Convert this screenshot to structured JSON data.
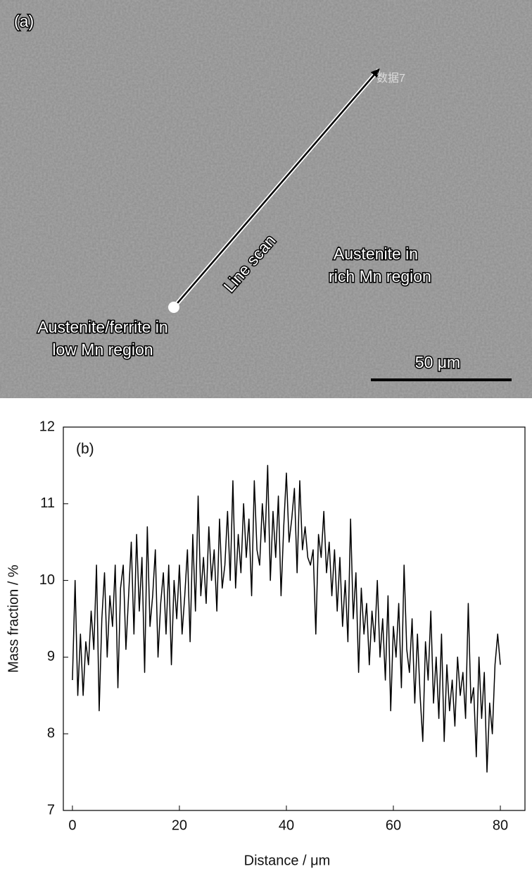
{
  "figure_a": {
    "panel_label": "(a)",
    "marker_label": "数据7",
    "scan_label": "Line scan",
    "rich_label": [
      "Austenite in",
      "rich Mn region"
    ],
    "low_label": [
      "Austenite/ferrite in",
      "low Mn region"
    ],
    "scale_bar": "50 μm"
  },
  "chart_data": {
    "type": "line",
    "annotation": "(b)",
    "xlabel": "Distance / μm",
    "ylabel": "Mass fraction / %",
    "color": "#000000",
    "xlim": [
      -1.7,
      84.6
    ],
    "ylim": [
      7,
      12
    ],
    "xticks": [
      0,
      20,
      40,
      60,
      80
    ],
    "yticks": [
      7,
      8,
      9,
      10,
      11,
      12
    ],
    "x": [
      0,
      0.5,
      1,
      1.5,
      2,
      2.5,
      3,
      3.5,
      4,
      4.5,
      5,
      5.5,
      6,
      6.5,
      7,
      7.5,
      8,
      8.5,
      9,
      9.5,
      10,
      10.5,
      11,
      11.5,
      12,
      12.5,
      13,
      13.5,
      14,
      14.5,
      15,
      15.5,
      16,
      16.5,
      17,
      17.5,
      18,
      18.5,
      19,
      19.5,
      20,
      20.5,
      21,
      21.5,
      22,
      22.5,
      23,
      23.5,
      24,
      24.5,
      25,
      25.5,
      26,
      26.5,
      27,
      27.5,
      28,
      28.5,
      29,
      29.5,
      30,
      30.5,
      31,
      31.5,
      32,
      32.5,
      33,
      33.5,
      34,
      34.5,
      35,
      35.5,
      36,
      36.5,
      37,
      37.5,
      38,
      38.5,
      39,
      39.5,
      40,
      40.5,
      41,
      41.5,
      42,
      42.5,
      43,
      43.5,
      44,
      44.5,
      45,
      45.5,
      46,
      46.5,
      47,
      47.5,
      48,
      48.5,
      49,
      49.5,
      50,
      50.5,
      51,
      51.5,
      52,
      52.5,
      53,
      53.5,
      54,
      54.5,
      55,
      55.5,
      56,
      56.5,
      57,
      57.5,
      58,
      58.5,
      59,
      59.5,
      60,
      60.5,
      61,
      61.5,
      62,
      62.5,
      63,
      63.5,
      64,
      64.5,
      65,
      65.5,
      66,
      66.5,
      67,
      67.5,
      68,
      68.5,
      69,
      69.5,
      70,
      70.5,
      71,
      71.5,
      72,
      72.5,
      73,
      73.5,
      74,
      74.5,
      75,
      75.5,
      76,
      76.5,
      77,
      77.5,
      78,
      78.5,
      79,
      79.5,
      80
    ],
    "values": [
      8.7,
      10.0,
      8.5,
      9.3,
      8.5,
      9.2,
      8.9,
      9.6,
      9.1,
      10.2,
      8.3,
      9.5,
      10.1,
      9.0,
      9.8,
      9.4,
      10.2,
      8.6,
      9.9,
      10.2,
      9.1,
      9.8,
      10.5,
      9.3,
      10.6,
      9.6,
      10.3,
      8.8,
      10.7,
      9.4,
      9.8,
      10.4,
      9.0,
      9.7,
      10.1,
      9.3,
      10.2,
      8.9,
      10.0,
      9.5,
      10.2,
      9.3,
      9.8,
      10.4,
      9.2,
      10.6,
      9.6,
      11.1,
      9.8,
      10.3,
      9.7,
      10.7,
      10.0,
      10.4,
      9.6,
      10.8,
      9.9,
      10.2,
      10.9,
      10.0,
      11.3,
      9.9,
      10.6,
      10.1,
      11.0,
      10.3,
      10.8,
      9.8,
      11.3,
      10.4,
      10.2,
      11.0,
      10.5,
      11.5,
      10.0,
      10.9,
      10.3,
      11.1,
      9.8,
      10.7,
      11.4,
      10.5,
      10.8,
      11.2,
      10.1,
      11.3,
      10.4,
      10.7,
      10.3,
      10.2,
      10.4,
      9.3,
      10.6,
      10.3,
      10.9,
      10.1,
      10.5,
      9.8,
      10.4,
      9.6,
      10.3,
      9.4,
      10.0,
      9.2,
      10.8,
      9.5,
      10.1,
      8.8,
      9.9,
      9.3,
      9.7,
      8.9,
      9.6,
      9.2,
      10.0,
      9.0,
      9.5,
      8.7,
      9.8,
      8.3,
      9.4,
      9.0,
      9.7,
      8.6,
      10.2,
      9.1,
      8.8,
      9.5,
      8.4,
      9.3,
      8.5,
      7.9,
      9.2,
      8.7,
      9.6,
      8.4,
      9.0,
      8.2,
      9.3,
      7.9,
      8.9,
      8.3,
      8.7,
      8.1,
      9.0,
      8.5,
      8.8,
      8.2,
      9.7,
      8.4,
      8.6,
      7.7,
      9.0,
      8.2,
      8.8,
      7.5,
      8.4,
      8.0,
      8.9,
      9.3,
      8.9
    ]
  }
}
